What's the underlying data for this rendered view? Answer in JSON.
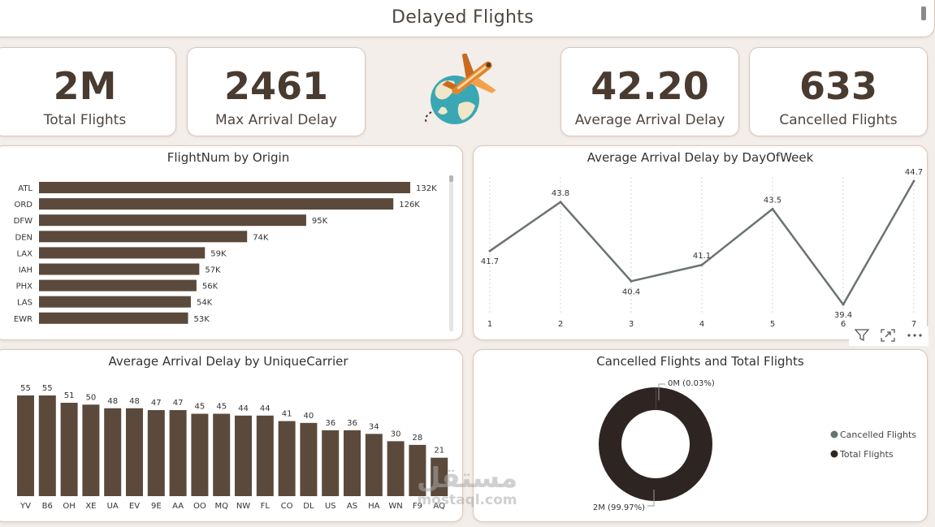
{
  "header": {
    "title": "Delayed Flights"
  },
  "kpis": [
    {
      "value": "2M",
      "label": "Total Flights"
    },
    {
      "value": "2461",
      "label": "Max Arrival Delay"
    },
    {
      "value": "42.20",
      "label": "Average Arrival Delay"
    },
    {
      "value": "633",
      "label": "Cancelled Flights"
    }
  ],
  "logo": {
    "icon": "airplane-globe-icon"
  },
  "charts": [
    {
      "title": "FlightNum by Origin",
      "type": "bar",
      "orientation": "horizontal",
      "categories": [
        "ATL",
        "ORD",
        "DFW",
        "DEN",
        "LAX",
        "IAH",
        "PHX",
        "LAS",
        "EWR"
      ],
      "values": [
        132000,
        126000,
        95000,
        74000,
        59000,
        57000,
        56000,
        54000,
        53000
      ],
      "data_labels": [
        "132K",
        "126K",
        "95K",
        "74K",
        "59K",
        "57K",
        "56K",
        "54K",
        "53K"
      ],
      "xlim": [
        0,
        132000
      ],
      "color": "#5b4a3c"
    },
    {
      "title": "Average Arrival Delay by DayOfWeek",
      "type": "line",
      "x": [
        "1",
        "2",
        "3",
        "4",
        "5",
        "6",
        "7"
      ],
      "values": [
        41.7,
        43.8,
        40.4,
        41.1,
        43.5,
        39.4,
        44.7
      ],
      "data_labels": [
        "41.7",
        "43.8",
        "40.4",
        "41.1",
        "43.5",
        "39.4",
        "44.7"
      ],
      "ylim": [
        39.4,
        44.7
      ],
      "color": "#6b7273"
    },
    {
      "title": "Average Arrival Delay by UniqueCarrier",
      "type": "bar",
      "orientation": "vertical",
      "categories": [
        "YV",
        "B6",
        "OH",
        "XE",
        "UA",
        "EV",
        "9E",
        "AA",
        "OO",
        "MQ",
        "NW",
        "FL",
        "CO",
        "DL",
        "US",
        "AS",
        "HA",
        "WN",
        "F9",
        "AQ"
      ],
      "values": [
        55,
        55,
        51,
        50,
        48,
        48,
        47,
        47,
        45,
        45,
        44,
        44,
        41,
        40,
        36,
        36,
        34,
        30,
        28,
        21
      ],
      "data_labels": [
        "55",
        "55",
        "51",
        "50",
        "48",
        "48",
        "47",
        "47",
        "45",
        "45",
        "44",
        "44",
        "41",
        "40",
        "36",
        "36",
        "34",
        "30",
        "28",
        "21"
      ],
      "ylim": [
        0,
        55
      ],
      "color": "#5b4a3c"
    },
    {
      "title": "Cancelled Flights and Total Flights",
      "type": "pie",
      "categories": [
        "Cancelled Flights",
        "Total Flights"
      ],
      "values": [
        0.03,
        99.97
      ],
      "data_labels": [
        "0M (0.03%)",
        "2M (99.97%)"
      ],
      "colors": [
        "#6b7273",
        "#2e2522"
      ],
      "legend": "right"
    }
  ],
  "toolbar": {
    "filter_icon": "filter-icon",
    "focus_icon": "focus-mode-icon",
    "more_icon": "more-options-icon"
  },
  "watermark": {
    "arabic": "مستقل",
    "latin": "mostaql.com"
  }
}
